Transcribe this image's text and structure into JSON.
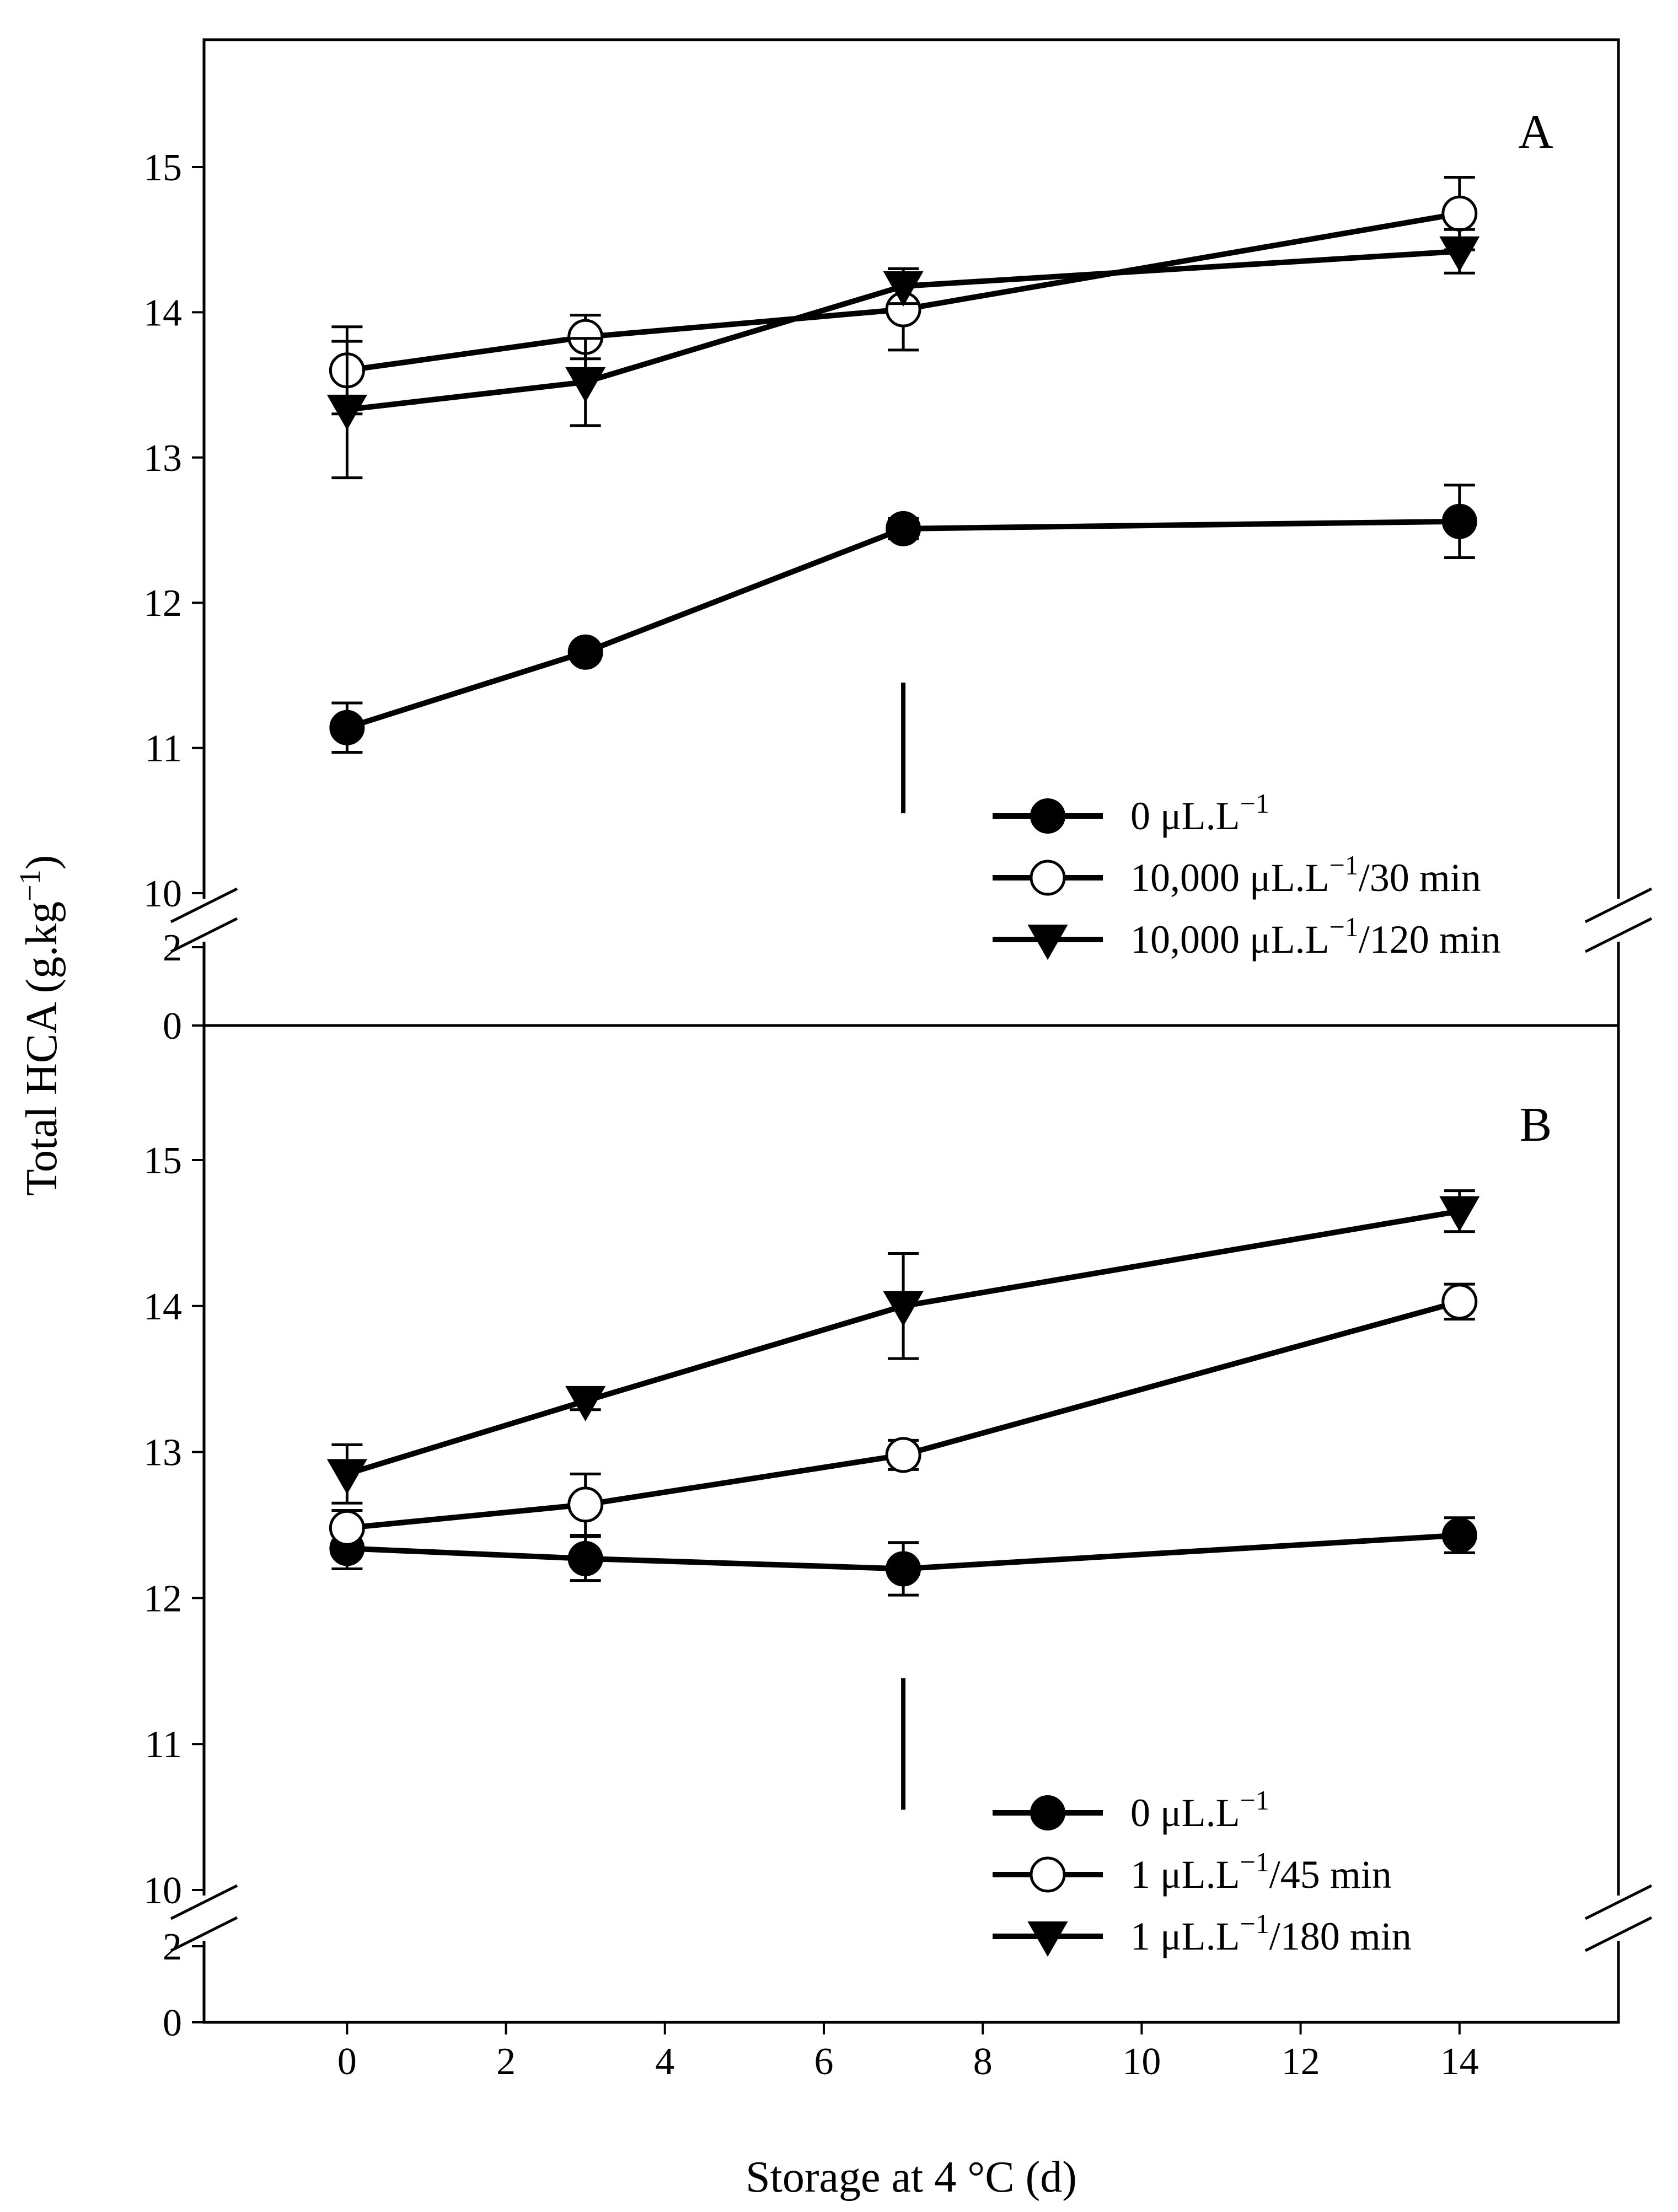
{
  "chart_data": {
    "type": "line",
    "ylabel": "Total HCA (g.kg",
    "ylabel_sup": "−1",
    "ylabel_close": ")",
    "xlabel": "Storage at 4 °C (d)",
    "x_ticks": [
      "0",
      "2",
      "4",
      "6",
      "8",
      "10",
      "12",
      "14"
    ],
    "xlim": [
      -1.8,
      16
    ],
    "panels": [
      {
        "id": "A",
        "label": "A",
        "y_ticks_upper": [
          "11",
          "12",
          "13",
          "14",
          "15"
        ],
        "y_tick_break_top": "10",
        "y_ticks_lower": [
          "2",
          "0"
        ],
        "ylim_upper": [
          10,
          16
        ],
        "ylim_lower": [
          0,
          2
        ],
        "significance_bar_x": 7,
        "series": [
          {
            "name": "0",
            "legend_label": "0 μL.L",
            "legend_sup": "−1",
            "legend_suffix": "",
            "marker": "filled-circle",
            "x": [
              0,
              3,
              7,
              14
            ],
            "values": [
              11.14,
              11.66,
              12.51,
              12.56
            ],
            "errors": [
              0.17,
              0.05,
              0.07,
              0.25
            ]
          },
          {
            "name": "10000-30",
            "legend_label": "10,000 μL.L",
            "legend_sup": "−1",
            "legend_suffix": "/30 min",
            "marker": "open-circle",
            "x": [
              0,
              3,
              7,
              14
            ],
            "values": [
              13.6,
              13.83,
              14.02,
              14.68
            ],
            "errors": [
              0.3,
              0.15,
              0.28,
              0.25
            ]
          },
          {
            "name": "10000-120",
            "legend_label": "10,000 μL.L",
            "legend_sup": "−1",
            "legend_suffix": "/120 min",
            "marker": "filled-triangle-down",
            "x": [
              0,
              3,
              7,
              14
            ],
            "values": [
              13.33,
              13.52,
              14.18,
              14.42
            ],
            "errors": [
              0.47,
              0.3,
              0.12,
              0.15
            ]
          }
        ]
      },
      {
        "id": "B",
        "label": "B",
        "y_ticks_upper": [
          "11",
          "12",
          "13",
          "14",
          "15"
        ],
        "y_tick_break_top": "10",
        "y_ticks_lower": [
          "2",
          "0"
        ],
        "ylim_upper": [
          10,
          16
        ],
        "ylim_lower": [
          0,
          2
        ],
        "significance_bar_x": 7,
        "series": [
          {
            "name": "0",
            "legend_label": "0 μL.L",
            "legend_sup": "−1",
            "legend_suffix": "",
            "marker": "filled-circle",
            "x": [
              0,
              3,
              7,
              14
            ],
            "values": [
              12.34,
              12.27,
              12.2,
              12.43
            ],
            "errors": [
              0.14,
              0.15,
              0.18,
              0.12
            ]
          },
          {
            "name": "1-45",
            "legend_label": "1 μL.L",
            "legend_sup": "−1",
            "legend_suffix": "/45 min",
            "marker": "open-circle",
            "x": [
              0,
              3,
              7,
              14
            ],
            "values": [
              12.48,
              12.64,
              12.98,
              14.03
            ],
            "errors": [
              0.12,
              0.21,
              0.1,
              0.12
            ]
          },
          {
            "name": "1-180",
            "legend_label": "1 μL.L",
            "legend_sup": "−1",
            "legend_suffix": "/180 min",
            "marker": "filled-triangle-down",
            "x": [
              0,
              3,
              7,
              14
            ],
            "values": [
              12.85,
              13.35,
              14.0,
              14.65
            ],
            "errors": [
              0.2,
              0.06,
              0.36,
              0.14
            ]
          }
        ]
      }
    ]
  }
}
